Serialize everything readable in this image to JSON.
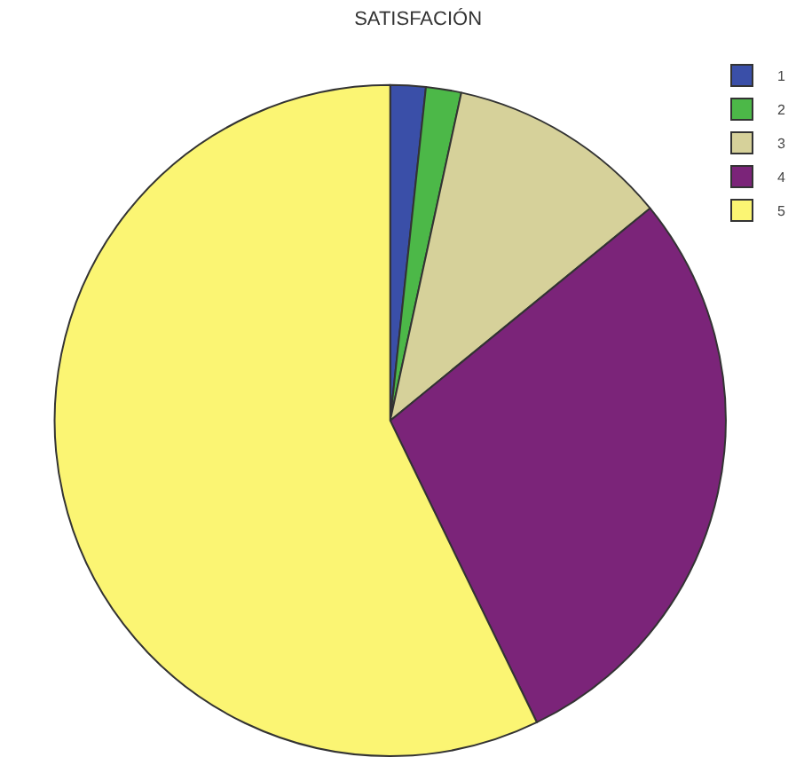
{
  "chart_data": {
    "type": "pie",
    "title": "SATISFACIÓN",
    "categories": [
      "1",
      "2",
      "3",
      "4",
      "5"
    ],
    "values": [
      1.7,
      1.7,
      10.7,
      28.7,
      57.2
    ],
    "colors": [
      "#3a4fa8",
      "#4cb848",
      "#d6d19a",
      "#7b2479",
      "#fbf573"
    ],
    "legend": "top right"
  }
}
